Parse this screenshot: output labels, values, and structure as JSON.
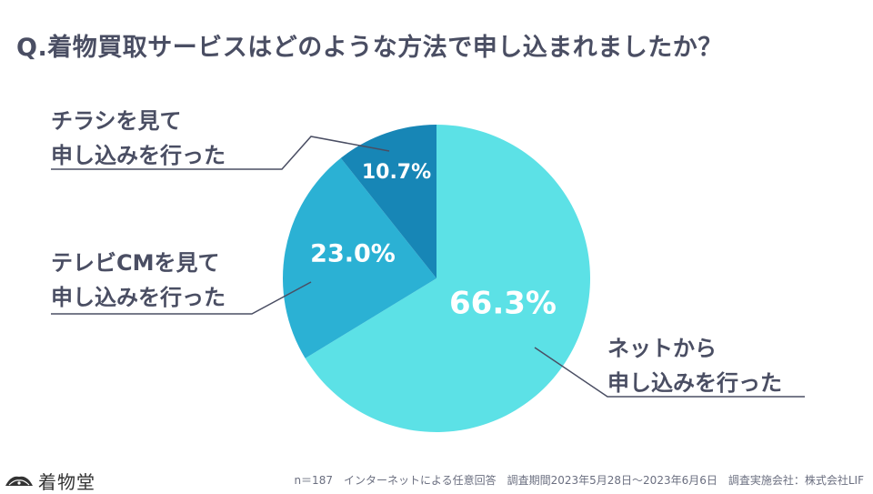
{
  "title": "Q.着物買取サービスはどのような方法で申し込まれましたか？",
  "chart_data": {
    "type": "pie",
    "title": "Q.着物買取サービスはどのような方法で申し込まれましたか？",
    "slices": [
      {
        "label_lines": [
          "ネットから",
          "申し込みを行った"
        ],
        "value": 66.3,
        "value_label": "66.3%",
        "color": "#5ce1e6"
      },
      {
        "label_lines": [
          "テレビCMを見て",
          "申し込みを行った"
        ],
        "value": 23.0,
        "value_label": "23.0%",
        "color": "#2bb1d4"
      },
      {
        "label_lines": [
          "チラシを見て",
          "申し込みを行った"
        ],
        "value": 10.7,
        "value_label": "10.7%",
        "color": "#1786b6"
      }
    ]
  },
  "footer": "n＝187　インターネットによる任意回答　調査期間2023年5月28日〜2023年6月6日　調査実施会社：株式会社LIF",
  "logo": {
    "text": "着物堂",
    "icon": "kimono-logo-icon"
  }
}
